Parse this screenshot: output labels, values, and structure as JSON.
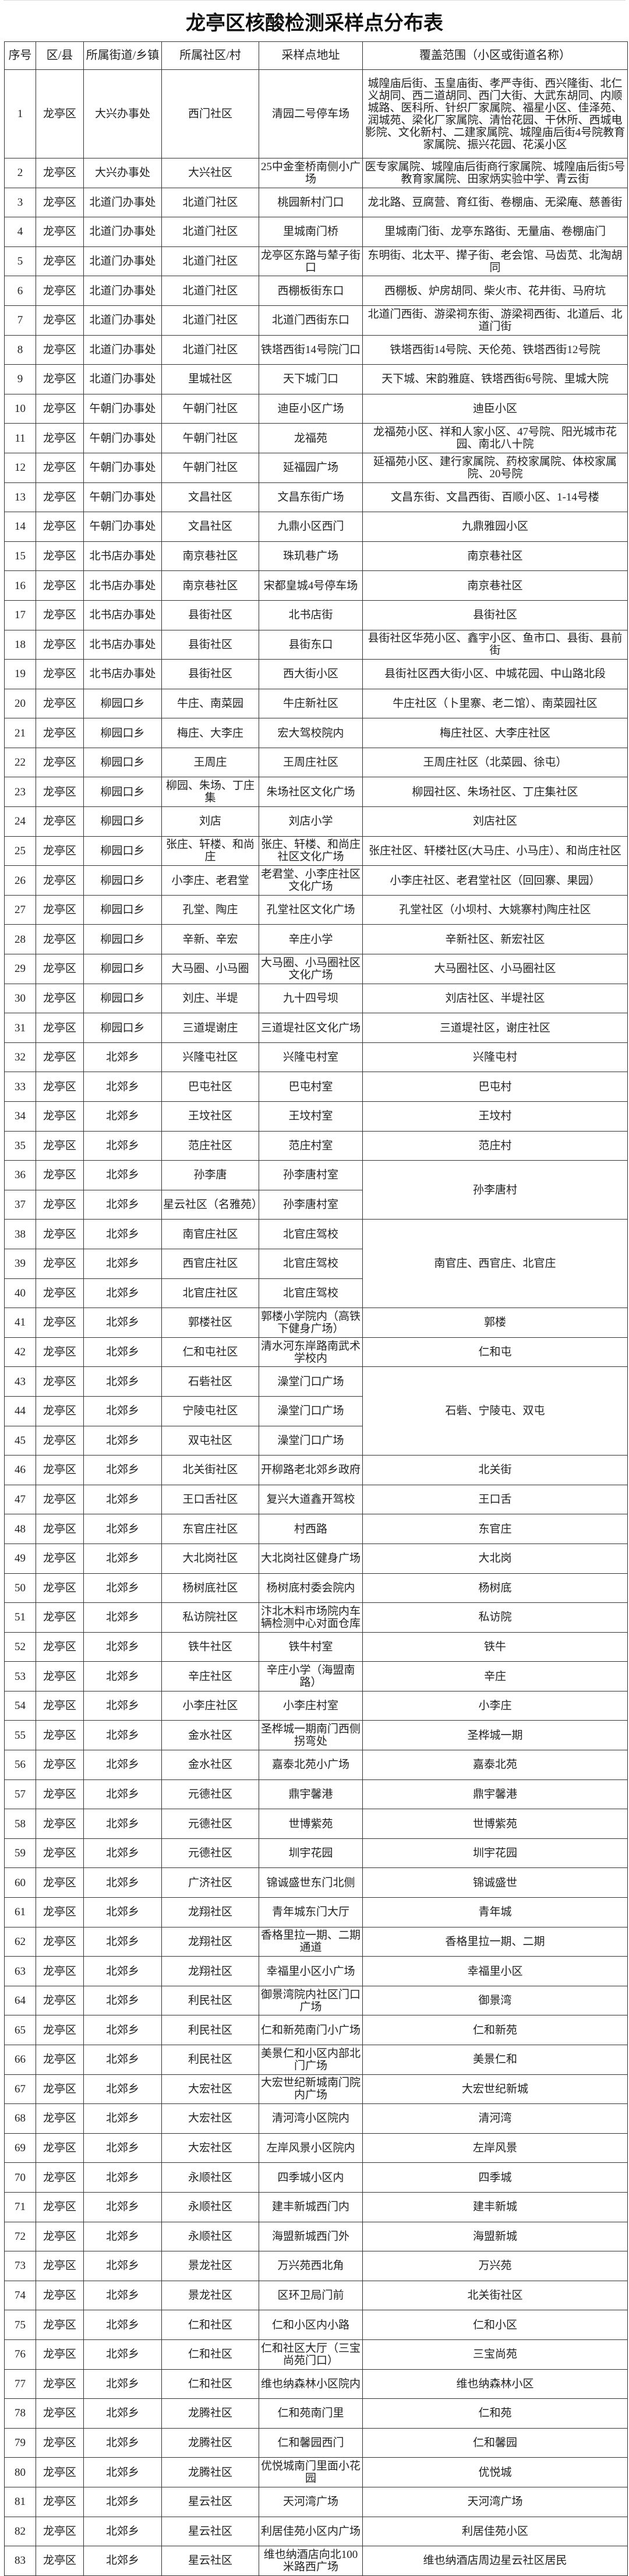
{
  "title": "龙亭区核酸检测采样点分布表",
  "headers": [
    "序号",
    "区/县",
    "所属街道/乡镇",
    "所属社区/村",
    "采样点地址",
    "覆盖范围（小区或街道名称）"
  ],
  "rows": [
    {
      "no": "1",
      "district": "龙亭区",
      "street": "大兴办事处",
      "community": "西门社区",
      "site": "清园二号停车场",
      "coverage": "城隍庙后街、玉皇庙街、孝严寺街、西兴隆街、北仁义胡同、西二道胡同、西门大街、大武东胡同、内顺城路、医科所、针织厂家属院、福星小区、佳泽苑、润城苑、梁化厂家属院、清怡花园、干休所、西城电影院、文化新村、二建家属院、城隍庙后街4号院教育家属院、振兴花园、花溪小区"
    },
    {
      "no": "2",
      "district": "龙亭区",
      "street": "大兴办事处",
      "community": "大兴社区",
      "site": "25中金奎桥南侧小广场",
      "coverage": "医专家属院、城隍庙后街商行家属院、城隍庙后街5号教育家属院、田家炳实验中学、青云街"
    },
    {
      "no": "3",
      "district": "龙亭区",
      "street": "北道门办事处",
      "community": "北道门社区",
      "site": "桃园新村门口",
      "coverage": "龙北路、豆腐营、育红街、卷棚庙、无梁庵、慈善街"
    },
    {
      "no": "4",
      "district": "龙亭区",
      "street": "北道门办事处",
      "community": "北道门社区",
      "site": "里城南门桥",
      "coverage": "里城南门街、龙亭东路街、无量庙、卷棚庙门"
    },
    {
      "no": "5",
      "district": "龙亭区",
      "street": "北道门办事处",
      "community": "北道门社区",
      "site": "龙亭区东路与辇子街口",
      "coverage": "东明街、北太平、撵子街、老会馆、马齿苋、北淘胡同"
    },
    {
      "no": "6",
      "district": "龙亭区",
      "street": "北道门办事处",
      "community": "北道门社区",
      "site": "西棚板街东口",
      "coverage": "西棚板、炉房胡同、柴火市、花井街、马府坑"
    },
    {
      "no": "7",
      "district": "龙亭区",
      "street": "北道门办事处",
      "community": "北道门社区",
      "site": "北道门西街东口",
      "coverage": "北道门西街、游梁祠东街、游梁祠西街、北道后、北道门街"
    },
    {
      "no": "8",
      "district": "龙亭区",
      "street": "北道门办事处",
      "community": "北道门社区",
      "site": "铁塔西街14号院门口",
      "coverage": "铁塔西街14号院、天伦苑、铁塔西街12号院"
    },
    {
      "no": "9",
      "district": "龙亭区",
      "street": "北道门办事处",
      "community": "里城社区",
      "site": "天下城门口",
      "coverage": "天下城、宋韵雅庭、铁塔西街6号院、里城大院"
    },
    {
      "no": "10",
      "district": "龙亭区",
      "street": "午朝门办事处",
      "community": "午朝门社区",
      "site": "迪臣小区广场",
      "coverage": "迪臣小区"
    },
    {
      "no": "11",
      "district": "龙亭区",
      "street": "午朝门办事处",
      "community": "午朝门社区",
      "site": "龙福苑",
      "coverage": "龙福苑小区、祥和人家小区、47号院、阳光城市花园、南北八十院"
    },
    {
      "no": "12",
      "district": "龙亭区",
      "street": "午朝门办事处",
      "community": "午朝门社区",
      "site": "延福园广场",
      "coverage": "延福苑小区、建行家属院、药校家属院、体校家属院、20号院"
    },
    {
      "no": "13",
      "district": "龙亭区",
      "street": "午朝门办事处",
      "community": "文昌社区",
      "site": "文昌东街广场",
      "coverage": "文昌东街、文昌西街、百顺小区、1-14号楼"
    },
    {
      "no": "14",
      "district": "龙亭区",
      "street": "午朝门办事处",
      "community": "文昌社区",
      "site": "九鼎小区西门",
      "coverage": "九鼎雅园小区"
    },
    {
      "no": "15",
      "district": "龙亭区",
      "street": "北书店办事处",
      "community": "南京巷社区",
      "site": "珠玑巷广场",
      "coverage": "南京巷社区"
    },
    {
      "no": "16",
      "district": "龙亭区",
      "street": "北书店办事处",
      "community": "南京巷社区",
      "site": "宋都皇城4号停车场",
      "coverage": "南京巷社区"
    },
    {
      "no": "17",
      "district": "龙亭区",
      "street": "北书店办事处",
      "community": "县街社区",
      "site": "北书店街",
      "coverage": "县街社区"
    },
    {
      "no": "18",
      "district": "龙亭区",
      "street": "北书店办事处",
      "community": "县街社区",
      "site": "县街东口",
      "coverage": "县街社区华苑小区、鑫宇小区、鱼市口、县街、县前街"
    },
    {
      "no": "19",
      "district": "龙亭区",
      "street": "北书店办事处",
      "community": "县街社区",
      "site": "西大街小区",
      "coverage": "县街社区西大街小区、中城花园、中山路北段"
    },
    {
      "no": "20",
      "district": "龙亭区",
      "street": "柳园口乡",
      "community": "牛庄、南菜园",
      "site": "牛庄新社区",
      "coverage": "牛庄社区（卜里寨、老二馆）、南菜园社区"
    },
    {
      "no": "21",
      "district": "龙亭区",
      "street": "柳园口乡",
      "community": "梅庄、大李庄",
      "site": "宏大驾校院内",
      "coverage": "梅庄社区、大李庄社区"
    },
    {
      "no": "22",
      "district": "龙亭区",
      "street": "柳园口乡",
      "community": "王周庄",
      "site": "王周庄社区",
      "coverage": "王周庄社区（北菜园、徐屯）"
    },
    {
      "no": "23",
      "district": "龙亭区",
      "street": "柳园口乡",
      "community": "柳园、朱场、丁庄集",
      "site": "朱场社区文化广场",
      "coverage": "柳园社区、朱场社区、丁庄集社区"
    },
    {
      "no": "24",
      "district": "龙亭区",
      "street": "柳园口乡",
      "community": "刘店",
      "site": "刘店小学",
      "coverage": "刘店社区"
    },
    {
      "no": "25",
      "district": "龙亭区",
      "street": "柳园口乡",
      "community": "张庄、轩楼、和尚庄",
      "site": "张庄、轩楼、和尚庄社区文化广场",
      "coverage": "张庄社区、轩楼社区(大马庄、小马庄）、和尚庄社区"
    },
    {
      "no": "26",
      "district": "龙亭区",
      "street": "柳园口乡",
      "community": "小李庄、老君堂",
      "site": "老君堂、小李庄社区文化广场",
      "coverage": "小李庄社区、老君堂社区（回回寨、果园）"
    },
    {
      "no": "27",
      "district": "龙亭区",
      "street": "柳园口乡",
      "community": "孔堂、陶庄",
      "site": "孔堂社区文化广场",
      "coverage": "孔堂社区（小坝村、大姚寨村)陶庄社区"
    },
    {
      "no": "28",
      "district": "龙亭区",
      "street": "柳园口乡",
      "community": "辛新、辛宏",
      "site": "辛庄小学",
      "coverage": "辛新社区、新宏社区"
    },
    {
      "no": "29",
      "district": "龙亭区",
      "street": "柳园口乡",
      "community": "大马圈、小马圈",
      "site": "大马圈、小马圈社区文化广场",
      "coverage": "大马圈社区、小马圈社区"
    },
    {
      "no": "30",
      "district": "龙亭区",
      "street": "柳园口乡",
      "community": "刘庄、半堤",
      "site": "九十四号坝",
      "coverage": "刘店社区、半堤社区"
    },
    {
      "no": "31",
      "district": "龙亭区",
      "street": "柳园口乡",
      "community": "三道堤谢庄",
      "site": "三道堤社区文化广场",
      "coverage": "三道堤社区，谢庄社区"
    },
    {
      "no": "32",
      "district": "龙亭区",
      "street": "北郊乡",
      "community": "兴隆屯社区",
      "site": "兴隆屯村室",
      "coverage": "兴隆屯村"
    },
    {
      "no": "33",
      "district": "龙亭区",
      "street": "北郊乡",
      "community": "巴屯社区",
      "site": "巴屯村室",
      "coverage": "巴屯村"
    },
    {
      "no": "34",
      "district": "龙亭区",
      "street": "北郊乡",
      "community": "王坟社区",
      "site": "王坟村室",
      "coverage": "王坟村"
    },
    {
      "no": "35",
      "district": "龙亭区",
      "street": "北郊乡",
      "community": "范庄社区",
      "site": "范庄村室",
      "coverage": "范庄村"
    },
    {
      "no": "36",
      "district": "龙亭区",
      "street": "北郊乡",
      "community": "孙李唐",
      "site": "孙李唐村室",
      "coverage": "孙李唐村",
      "coverage_rowspan": 2
    },
    {
      "no": "37",
      "district": "龙亭区",
      "street": "北郊乡",
      "community": "星云社区（名雅苑）",
      "site": "孙李唐村室"
    },
    {
      "no": "38",
      "district": "龙亭区",
      "street": "北郊乡",
      "community": "南官庄社区",
      "site": "北官庄驾校",
      "coverage": "南官庄、西官庄、北官庄",
      "coverage_rowspan": 3
    },
    {
      "no": "39",
      "district": "龙亭区",
      "street": "北郊乡",
      "community": "西官庄社区",
      "site": "北官庄驾校"
    },
    {
      "no": "40",
      "district": "龙亭区",
      "street": "北郊乡",
      "community": "北官庄社区",
      "site": "北官庄驾校"
    },
    {
      "no": "41",
      "district": "龙亭区",
      "street": "北郊乡",
      "community": "郭楼社区",
      "site": "郭楼小学院内（高铁下健身广场）",
      "coverage": "郭楼"
    },
    {
      "no": "42",
      "district": "龙亭区",
      "street": "北郊乡",
      "community": "仁和屯社区",
      "site": "清水河东岸路南武术学校内",
      "coverage": "仁和屯"
    },
    {
      "no": "43",
      "district": "龙亭区",
      "street": "北郊乡",
      "community": "石砦社区",
      "site": "澡堂门口广场",
      "coverage": "石砦、宁陵屯、双屯",
      "coverage_rowspan": 3
    },
    {
      "no": "44",
      "district": "龙亭区",
      "street": "北郊乡",
      "community": "宁陵屯社区",
      "site": "澡堂门口广场"
    },
    {
      "no": "45",
      "district": "龙亭区",
      "street": "北郊乡",
      "community": "双屯社区",
      "site": "澡堂门口广场"
    },
    {
      "no": "46",
      "district": "龙亭区",
      "street": "北郊乡",
      "community": "北关街社区",
      "site": "开柳路老北郊乡政府",
      "coverage": "北关街"
    },
    {
      "no": "47",
      "district": "龙亭区",
      "street": "北郊乡",
      "community": "王口舌社区",
      "site": "复兴大道鑫开驾校",
      "coverage": "王口舌"
    },
    {
      "no": "48",
      "district": "龙亭区",
      "street": "北郊乡",
      "community": "东官庄社区",
      "site": "村西路",
      "coverage": "东官庄"
    },
    {
      "no": "49",
      "district": "龙亭区",
      "street": "北郊乡",
      "community": "大北岗社区",
      "site": "大北岗社区健身广场",
      "coverage": "大北岗"
    },
    {
      "no": "50",
      "district": "龙亭区",
      "street": "北郊乡",
      "community": "杨树底社区",
      "site": "杨树底村委会院内",
      "coverage": "杨树底"
    },
    {
      "no": "51",
      "district": "龙亭区",
      "street": "北郊乡",
      "community": "私访院社区",
      "site": "汴北木料市场院内车辆检测中心对面仓库",
      "coverage": "私访院"
    },
    {
      "no": "52",
      "district": "龙亭区",
      "street": "北郊乡",
      "community": "铁牛社区",
      "site": "铁牛村室",
      "coverage": "铁牛"
    },
    {
      "no": "53",
      "district": "龙亭区",
      "street": "北郊乡",
      "community": "辛庄社区",
      "site": "辛庄小学（海盟南路）",
      "coverage": "辛庄"
    },
    {
      "no": "54",
      "district": "龙亭区",
      "street": "北郊乡",
      "community": "小李庄社区",
      "site": "小李庄村室",
      "coverage": "小李庄"
    },
    {
      "no": "55",
      "district": "龙亭区",
      "street": "北郊乡",
      "community": "金水社区",
      "site": "圣桦城一期南门西侧拐弯处",
      "coverage": "圣桦城一期"
    },
    {
      "no": "56",
      "district": "龙亭区",
      "street": "北郊乡",
      "community": "金水社区",
      "site": "嘉泰北苑小广场",
      "coverage": "嘉泰北苑"
    },
    {
      "no": "57",
      "district": "龙亭区",
      "street": "北郊乡",
      "community": "元德社区",
      "site": "鼎宇馨港",
      "coverage": "鼎宇馨港"
    },
    {
      "no": "58",
      "district": "龙亭区",
      "street": "北郊乡",
      "community": "元德社区",
      "site": "世博紫苑",
      "coverage": "世博紫苑"
    },
    {
      "no": "59",
      "district": "龙亭区",
      "street": "北郊乡",
      "community": "元德社区",
      "site": "圳宇花园",
      "coverage": "圳宇花园"
    },
    {
      "no": "60",
      "district": "龙亭区",
      "street": "北郊乡",
      "community": "广济社区",
      "site": "锦诚盛世东门北侧",
      "coverage": "锦诚盛世"
    },
    {
      "no": "61",
      "district": "龙亭区",
      "street": "北郊乡",
      "community": "龙翔社区",
      "site": "青年城东门大厅",
      "coverage": "青年城"
    },
    {
      "no": "62",
      "district": "龙亭区",
      "street": "北郊乡",
      "community": "龙翔社区",
      "site": "香格里拉一期、二期通道",
      "coverage": "香格里拉一期、二期"
    },
    {
      "no": "63",
      "district": "龙亭区",
      "street": "北郊乡",
      "community": "龙翔社区",
      "site": "幸福里小区小广场",
      "coverage": "幸福里小区"
    },
    {
      "no": "64",
      "district": "龙亭区",
      "street": "北郊乡",
      "community": "利民社区",
      "site": "御景湾院内社区门口广场",
      "coverage": "御景湾"
    },
    {
      "no": "65",
      "district": "龙亭区",
      "street": "北郊乡",
      "community": "利民社区",
      "site": "仁和新苑南门小广场",
      "coverage": "仁和新苑"
    },
    {
      "no": "66",
      "district": "龙亭区",
      "street": "北郊乡",
      "community": "利民社区",
      "site": "美景仁和小区内部北门广场",
      "coverage": "美景仁和"
    },
    {
      "no": "67",
      "district": "龙亭区",
      "street": "北郊乡",
      "community": "大宏社区",
      "site": "大宏世纪新城南门院内广场",
      "coverage": "大宏世纪新城"
    },
    {
      "no": "68",
      "district": "龙亭区",
      "street": "北郊乡",
      "community": "大宏社区",
      "site": "清河湾小区院内",
      "coverage": "清河湾"
    },
    {
      "no": "69",
      "district": "龙亭区",
      "street": "北郊乡",
      "community": "大宏社区",
      "site": "左岸风景小区院内",
      "coverage": "左岸风景"
    },
    {
      "no": "70",
      "district": "龙亭区",
      "street": "北郊乡",
      "community": "永顺社区",
      "site": "四季城小区内",
      "coverage": "四季城"
    },
    {
      "no": "71",
      "district": "龙亭区",
      "street": "北郊乡",
      "community": "永顺社区",
      "site": "建丰新城西门内",
      "coverage": "建丰新城"
    },
    {
      "no": "72",
      "district": "龙亭区",
      "street": "北郊乡",
      "community": "永顺社区",
      "site": "海盟新城西门外",
      "coverage": "海盟新城"
    },
    {
      "no": "73",
      "district": "龙亭区",
      "street": "北郊乡",
      "community": "景龙社区",
      "site": "万兴苑西北角",
      "coverage": "万兴苑"
    },
    {
      "no": "74",
      "district": "龙亭区",
      "street": "北郊乡",
      "community": "景龙社区",
      "site": "区环卫局门前",
      "coverage": "北关街社区"
    },
    {
      "no": "75",
      "district": "龙亭区",
      "street": "北郊乡",
      "community": "仁和社区",
      "site": "仁和小区内小路",
      "coverage": "仁和小区"
    },
    {
      "no": "76",
      "district": "龙亭区",
      "street": "北郊乡",
      "community": "仁和社区",
      "site": "仁和社区大厅（三宝尚苑门口）",
      "coverage": "三宝尚苑"
    },
    {
      "no": "77",
      "district": "龙亭区",
      "street": "北郊乡",
      "community": "仁和社区",
      "site": "维也纳森林小区院内",
      "coverage": "维也纳森林小区"
    },
    {
      "no": "78",
      "district": "龙亭区",
      "street": "北郊乡",
      "community": "龙腾社区",
      "site": "仁和苑南门里",
      "coverage": "仁和苑"
    },
    {
      "no": "79",
      "district": "龙亭区",
      "street": "北郊乡",
      "community": "龙腾社区",
      "site": "仁和馨园西门",
      "coverage": "仁和馨园"
    },
    {
      "no": "80",
      "district": "龙亭区",
      "street": "北郊乡",
      "community": "龙腾社区",
      "site": "优悦城南门里面小花园",
      "coverage": "优悦城"
    },
    {
      "no": "81",
      "district": "龙亭区",
      "street": "北郊乡",
      "community": "星云社区",
      "site": "天河湾广场",
      "coverage": "天河湾广场"
    },
    {
      "no": "82",
      "district": "龙亭区",
      "street": "北郊乡",
      "community": "星云社区",
      "site": "利居佳苑小区内广场",
      "coverage": "利居佳苑小区"
    },
    {
      "no": "83",
      "district": "龙亭区",
      "street": "北郊乡",
      "community": "星云社区",
      "site": "维也纳酒店向北100米路西广场",
      "coverage": "维也纳酒店周边星云社区居民"
    }
  ]
}
